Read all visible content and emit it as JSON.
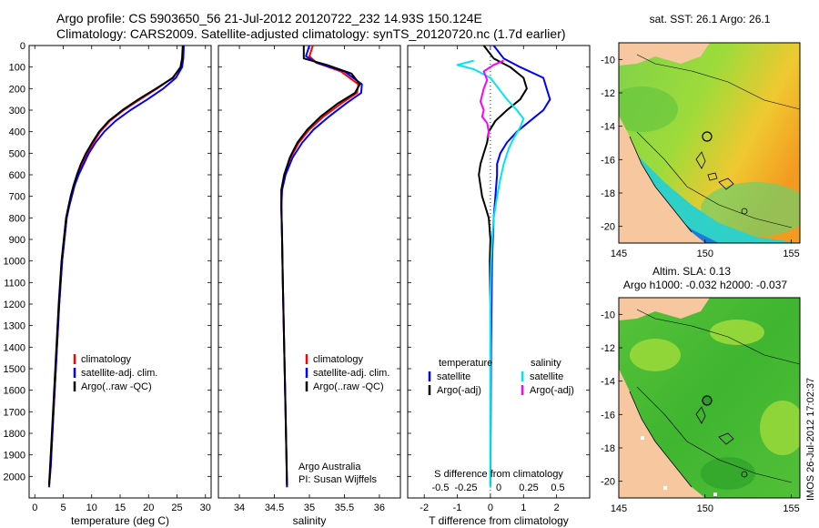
{
  "header": {
    "line1": "Argo profile: CS 5903650_56 21-Jul-2012 20120722_232 14.93S 150.124E",
    "line2": "Climatology: CARS2009. Satellite-adjusted climatology: synTS_20120720.nc (1.7d earlier)"
  },
  "side_stamp": "IMOS 26-Jul-2012 17:02:37",
  "colors": {
    "climatology": "#ff0000",
    "satellite": "#0000ff",
    "argo": "#000000",
    "salinity_sat": "#00e5ee",
    "salinity_argo": "#ff00ff",
    "land": "#f7c8a0"
  },
  "chart_data": [
    {
      "type": "line",
      "id": "temperature",
      "xlabel": "temperature (deg C)",
      "ylabel": "",
      "xlim": [
        -1,
        31
      ],
      "ylim": [
        2100,
        0
      ],
      "xticks": [
        0,
        5,
        10,
        15,
        20,
        25,
        30
      ],
      "yticks": [
        0,
        100,
        200,
        300,
        400,
        500,
        600,
        700,
        800,
        900,
        1000,
        1100,
        1200,
        1300,
        1400,
        1500,
        1600,
        1700,
        1800,
        1900,
        2000
      ],
      "legend": [
        "climatology",
        "satellite-adj. clim.",
        "Argo(..raw -QC)"
      ],
      "series": [
        {
          "name": "climatology",
          "color": "#ff0000",
          "points": [
            [
              26.1,
              0
            ],
            [
              26.0,
              60
            ],
            [
              25.7,
              100
            ],
            [
              24.2,
              150
            ],
            [
              21.5,
              200
            ],
            [
              18.5,
              250
            ],
            [
              15.6,
              300
            ],
            [
              13.2,
              350
            ],
            [
              11.5,
              400
            ],
            [
              10.3,
              450
            ],
            [
              9.2,
              500
            ],
            [
              8.3,
              550
            ],
            [
              7.5,
              600
            ],
            [
              6.9,
              650
            ],
            [
              6.4,
              700
            ],
            [
              6.0,
              750
            ],
            [
              5.6,
              800
            ],
            [
              5.2,
              900
            ],
            [
              4.8,
              1000
            ],
            [
              4.3,
              1200
            ],
            [
              3.9,
              1400
            ],
            [
              3.5,
              1600
            ],
            [
              3.1,
              1800
            ],
            [
              2.8,
              1950
            ],
            [
              2.5,
              2050
            ]
          ]
        },
        {
          "name": "satellite",
          "color": "#0000ff",
          "points": [
            [
              26.2,
              0
            ],
            [
              26.1,
              60
            ],
            [
              25.9,
              100
            ],
            [
              24.8,
              150
            ],
            [
              22.6,
              200
            ],
            [
              19.8,
              250
            ],
            [
              16.8,
              300
            ],
            [
              14.2,
              350
            ],
            [
              12.2,
              400
            ],
            [
              10.7,
              450
            ],
            [
              9.5,
              500
            ],
            [
              8.6,
              550
            ],
            [
              7.7,
              600
            ],
            [
              7.0,
              650
            ],
            [
              6.5,
              700
            ],
            [
              6.0,
              750
            ],
            [
              5.6,
              800
            ],
            [
              5.2,
              900
            ],
            [
              4.8,
              1000
            ],
            [
              4.3,
              1200
            ],
            [
              3.9,
              1400
            ],
            [
              3.5,
              1600
            ],
            [
              3.1,
              1800
            ],
            [
              2.8,
              1950
            ],
            [
              2.5,
              2050
            ]
          ]
        },
        {
          "name": "argo",
          "color": "#000000",
          "points": [
            [
              26.0,
              0
            ],
            [
              25.9,
              60
            ],
            [
              25.6,
              100
            ],
            [
              24.3,
              150
            ],
            [
              21.3,
              200
            ],
            [
              18.2,
              250
            ],
            [
              15.4,
              300
            ],
            [
              13.0,
              350
            ],
            [
              11.3,
              400
            ],
            [
              10.1,
              450
            ],
            [
              9.0,
              500
            ],
            [
              8.1,
              550
            ],
            [
              7.4,
              600
            ],
            [
              6.8,
              650
            ],
            [
              6.3,
              700
            ],
            [
              5.9,
              750
            ],
            [
              5.5,
              800
            ],
            [
              5.1,
              900
            ],
            [
              4.7,
              1000
            ],
            [
              4.2,
              1200
            ],
            [
              3.8,
              1400
            ],
            [
              3.4,
              1600
            ],
            [
              3.0,
              1800
            ],
            [
              2.7,
              1950
            ],
            [
              2.5,
              2040
            ]
          ]
        }
      ]
    },
    {
      "type": "line",
      "id": "salinity",
      "xlabel": "salinity",
      "xlim": [
        33.7,
        36.3
      ],
      "ylim": [
        2100,
        0
      ],
      "xticks": [
        34,
        34.5,
        35,
        35.5,
        36
      ],
      "legend": [
        "climatology",
        "satellite-adj. clim.",
        "Argo(..raw -QC)"
      ],
      "credit": [
        "Argo Australia",
        "PI: Susan Wijffels"
      ],
      "series": [
        {
          "name": "climatology",
          "color": "#ff0000",
          "points": [
            [
              35.05,
              0
            ],
            [
              35.0,
              50
            ],
            [
              35.1,
              80
            ],
            [
              35.45,
              120
            ],
            [
              35.7,
              180
            ],
            [
              35.68,
              220
            ],
            [
              35.45,
              270
            ],
            [
              35.2,
              330
            ],
            [
              35.0,
              390
            ],
            [
              34.85,
              450
            ],
            [
              34.73,
              520
            ],
            [
              34.64,
              600
            ],
            [
              34.6,
              670
            ],
            [
              34.6,
              750
            ],
            [
              34.61,
              900
            ],
            [
              34.62,
              1100
            ],
            [
              34.64,
              1400
            ],
            [
              34.66,
              1700
            ],
            [
              34.68,
              2050
            ]
          ]
        },
        {
          "name": "satellite",
          "color": "#0000ff",
          "points": [
            [
              35.0,
              0
            ],
            [
              34.95,
              50
            ],
            [
              35.1,
              80
            ],
            [
              35.5,
              120
            ],
            [
              35.75,
              180
            ],
            [
              35.74,
              220
            ],
            [
              35.52,
              270
            ],
            [
              35.28,
              330
            ],
            [
              35.06,
              390
            ],
            [
              34.9,
              450
            ],
            [
              34.76,
              520
            ],
            [
              34.66,
              600
            ],
            [
              34.61,
              670
            ],
            [
              34.6,
              750
            ],
            [
              34.61,
              900
            ],
            [
              34.62,
              1100
            ],
            [
              34.64,
              1400
            ],
            [
              34.66,
              1700
            ],
            [
              34.68,
              2050
            ]
          ]
        },
        {
          "name": "argo",
          "color": "#000000",
          "points": [
            [
              34.92,
              0
            ],
            [
              34.92,
              60
            ],
            [
              35.25,
              90
            ],
            [
              35.6,
              130
            ],
            [
              35.72,
              180
            ],
            [
              35.65,
              220
            ],
            [
              35.4,
              270
            ],
            [
              35.16,
              330
            ],
            [
              34.97,
              390
            ],
            [
              34.83,
              450
            ],
            [
              34.72,
              520
            ],
            [
              34.64,
              600
            ],
            [
              34.6,
              670
            ],
            [
              34.6,
              750
            ],
            [
              34.61,
              900
            ],
            [
              34.62,
              1100
            ],
            [
              34.64,
              1400
            ],
            [
              34.66,
              1700
            ],
            [
              34.68,
              2040
            ]
          ]
        }
      ]
    },
    {
      "type": "line",
      "id": "difference",
      "xlabel": "T difference from climatology",
      "x2label": "S difference from climatology",
      "xlim": [
        -2.5,
        3
      ],
      "ylim": [
        2100,
        0
      ],
      "xticks": [
        -2,
        -1,
        0,
        1,
        2
      ],
      "x2ticks": [
        "-0.5",
        "-0.25",
        "0",
        "0.25",
        "0.5"
      ],
      "legend_left_title": "temperature",
      "legend_right_title": "salinity",
      "legend": [
        "satellite",
        "Argo(-adj)",
        "satellite",
        "Argo(-adj)"
      ],
      "series": [
        {
          "name": "temperature satellite",
          "color": "#0000ff",
          "points": [
            [
              0.1,
              0
            ],
            [
              0.4,
              60
            ],
            [
              0.9,
              100
            ],
            [
              1.6,
              150
            ],
            [
              1.7,
              200
            ],
            [
              1.8,
              250
            ],
            [
              1.6,
              300
            ],
            [
              1.2,
              350
            ],
            [
              0.8,
              400
            ],
            [
              0.5,
              450
            ],
            [
              0.3,
              500
            ],
            [
              0.2,
              550
            ],
            [
              0.2,
              600
            ],
            [
              0.15,
              700
            ],
            [
              0.1,
              800
            ],
            [
              0.05,
              1000
            ],
            [
              0.02,
              1400
            ],
            [
              0.0,
              2050
            ]
          ]
        },
        {
          "name": "temperature argo",
          "color": "#000000",
          "points": [
            [
              -0.2,
              0
            ],
            [
              0.1,
              60
            ],
            [
              0.6,
              100
            ],
            [
              1.0,
              150
            ],
            [
              1.1,
              200
            ],
            [
              0.9,
              250
            ],
            [
              0.5,
              300
            ],
            [
              0.15,
              350
            ],
            [
              -0.05,
              400
            ],
            [
              -0.1,
              450
            ],
            [
              -0.2,
              500
            ],
            [
              -0.3,
              550
            ],
            [
              -0.35,
              600
            ],
            [
              -0.3,
              650
            ],
            [
              -0.25,
              700
            ],
            [
              -0.15,
              750
            ],
            [
              -0.05,
              800
            ],
            [
              0.0,
              900
            ],
            [
              -0.02,
              1000
            ],
            [
              0.0,
              1200
            ],
            [
              0.0,
              1600
            ],
            [
              0.0,
              2040
            ]
          ]
        },
        {
          "name": "salinity satellite",
          "color": "#00e5ee",
          "points": [
            [
              -0.5,
              70
            ],
            [
              -1.0,
              90
            ],
            [
              -0.5,
              110
            ],
            [
              0.0,
              150
            ],
            [
              0.25,
              200
            ],
            [
              0.5,
              250
            ],
            [
              0.8,
              300
            ],
            [
              1.0,
              340
            ],
            [
              0.9,
              380
            ],
            [
              0.7,
              430
            ],
            [
              0.55,
              480
            ],
            [
              0.4,
              550
            ],
            [
              0.3,
              620
            ],
            [
              0.2,
              700
            ],
            [
              0.1,
              800
            ],
            [
              0.05,
              900
            ],
            [
              0.02,
              1000
            ],
            [
              0.0,
              1200
            ],
            [
              0.0,
              2050
            ]
          ]
        },
        {
          "name": "salinity argo",
          "color": "#ff00ff",
          "points": [
            [
              0.4,
              70
            ],
            [
              0.1,
              90
            ],
            [
              -0.2,
              120
            ],
            [
              -0.1,
              160
            ],
            [
              -0.2,
              200
            ],
            [
              -0.3,
              260
            ],
            [
              -0.2,
              300
            ],
            [
              -0.25,
              330
            ],
            [
              -0.1,
              360
            ],
            [
              -0.05,
              400
            ],
            [
              -0.1,
              430
            ]
          ]
        }
      ]
    },
    {
      "type": "heatmap",
      "id": "sst_map",
      "title": "sat. SST: 26.1 Argo: 26.1",
      "xlim": [
        145,
        155.5
      ],
      "ylim": [
        -21,
        -9
      ],
      "xticks": [
        145,
        150,
        155
      ],
      "yticks": [
        -10,
        -12,
        -14,
        -16,
        -18,
        -20
      ],
      "argo_position": [
        150.12,
        -14.93
      ]
    },
    {
      "type": "heatmap",
      "id": "sla_map",
      "title": "Altim. SLA: 0.13",
      "subtitle": "Argo h1000: -0.032 h2000: -0.037",
      "xlim": [
        145,
        155.5
      ],
      "ylim": [
        -21,
        -9
      ],
      "xticks": [
        145,
        150,
        155
      ],
      "yticks": [
        -10,
        -12,
        -14,
        -16,
        -18,
        -20
      ],
      "argo_position": [
        150.12,
        -14.93
      ]
    }
  ]
}
